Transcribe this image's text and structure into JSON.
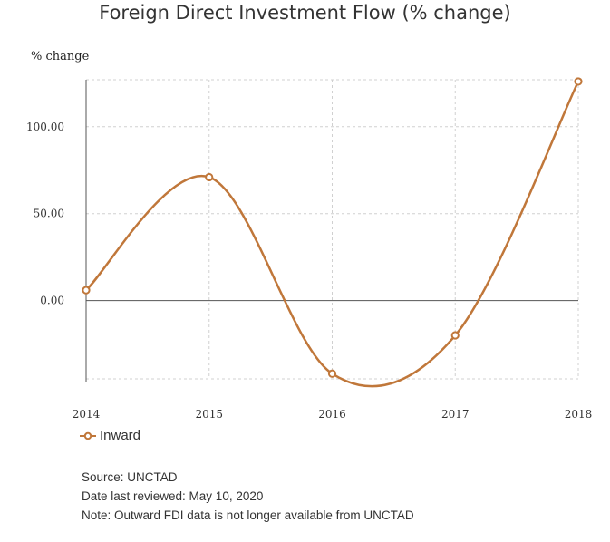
{
  "chart_data": {
    "type": "line",
    "title": "Foreign Direct Investment Flow (% change)",
    "ylabel": "% change",
    "xlabel": "",
    "x": [
      "2014",
      "2015",
      "2016",
      "2017",
      "2018"
    ],
    "series": [
      {
        "name": "Inward",
        "values": [
          6,
          71,
          -42,
          -20,
          126
        ]
      }
    ],
    "yticks": [
      "100.00",
      "50.00",
      "0.00"
    ],
    "ytick_values": [
      100,
      50,
      0
    ],
    "ylim": [
      -45,
      127
    ],
    "grid": true,
    "smooth": true,
    "legend": "bottom-left",
    "line_color": "#c0773a"
  },
  "notes": {
    "source": "Source: UNCTAD",
    "reviewed": "Date last reviewed: May 10, 2020",
    "note": "Note: Outward FDI data is not longer available from UNCTAD"
  }
}
